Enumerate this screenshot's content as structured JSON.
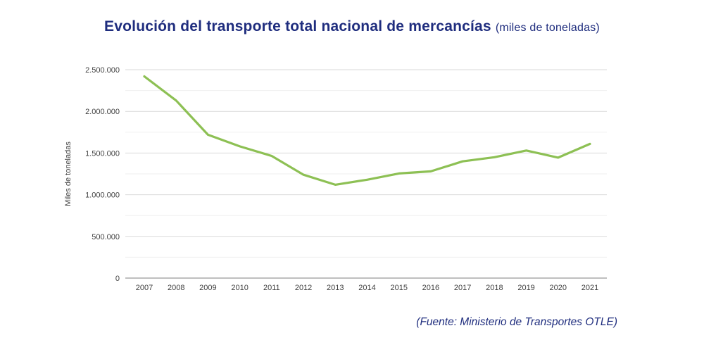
{
  "page": {
    "title": "Evolución del transporte total nacional de mercancías",
    "title_suffix": "(miles de toneladas)",
    "source_note": "(Fuente: Ministerio de Transportes OTLE)",
    "colors": {
      "title_text": "#1F2D7E",
      "line": "#8DC054",
      "grid_major": "#D9D9D9",
      "grid_minor": "#EFEFEF",
      "axis_line": "#999999",
      "tick_text": "#3F3F3F"
    }
  },
  "chart_data": {
    "type": "line",
    "title": "Evolución del transporte total nacional de mercancías (miles de toneladas)",
    "xlabel": "",
    "ylabel": "Miles de toneladas",
    "categories": [
      2007,
      2008,
      2009,
      2010,
      2011,
      2012,
      2013,
      2014,
      2015,
      2016,
      2017,
      2018,
      2019,
      2020,
      2021
    ],
    "values": [
      2420000,
      2130000,
      1720000,
      1580000,
      1465000,
      1240000,
      1120000,
      1180000,
      1255000,
      1280000,
      1400000,
      1450000,
      1530000,
      1445000,
      1610000
    ],
    "ylim": [
      0,
      2500000
    ],
    "y_minor_step": 250000,
    "y_label_step": 500000,
    "grid": true,
    "legend": false,
    "series_name": "Transporte total nacional de mercancías"
  }
}
